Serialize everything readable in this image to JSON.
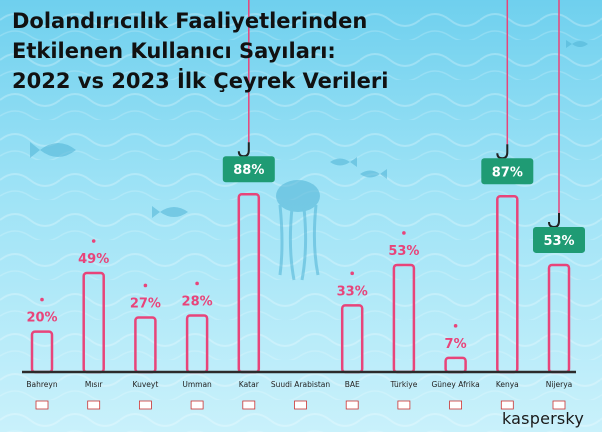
{
  "title_lines": [
    "Dolandırıcılık Faaliyetlerinden",
    "Etkilenen Kullanıcı Sayıları:",
    "2022 vs 2023 İlk Çeyrek Verileri"
  ],
  "logo": "kaspersky",
  "colors": {
    "bar": "#e8447a",
    "label": "#e8447a",
    "badge": "#1f9b74",
    "axis": "#2b2b2b"
  },
  "chart_data": {
    "type": "bar",
    "title": "Dolandırıcılık Faaliyetlerinden Etkilenen Kullanıcı Sayıları: 2022 vs 2023 İlk Çeyrek Verileri",
    "categories": [
      "Bahreyn",
      "Mısır",
      "Kuveyt",
      "Umman",
      "Katar",
      "Suudi Arabistan",
      "BAE",
      "Türkiye",
      "Güney Afrika",
      "Kenya",
      "Nijerya"
    ],
    "values": [
      20,
      49,
      27,
      28,
      88,
      0,
      33,
      53,
      7,
      87,
      53
    ],
    "value_labels": [
      "20%",
      "49%",
      "27%",
      "28%",
      "88%",
      "",
      "33%",
      "53%",
      "7%",
      "87%",
      "53%"
    ],
    "highlighted": [
      "Katar",
      "Kenya",
      "Nijerya"
    ],
    "ylim": [
      0,
      100
    ],
    "grid": false,
    "legend": "none"
  }
}
